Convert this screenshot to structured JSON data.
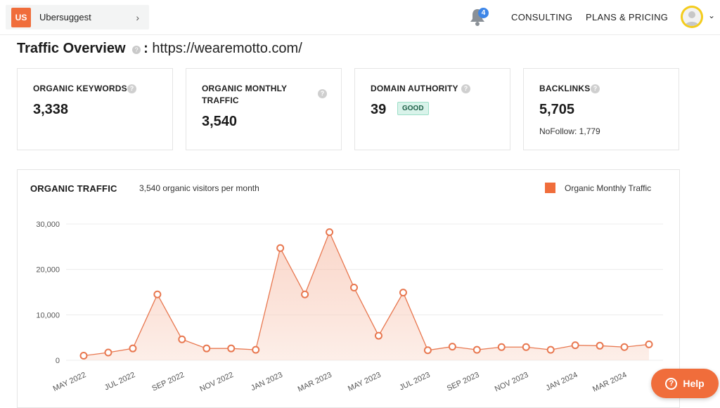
{
  "header": {
    "project_logo": "US",
    "project_name": "Ubersuggest",
    "notification_count": "4",
    "nav": [
      "CONSULTING",
      "PLANS & PRICING"
    ]
  },
  "page": {
    "title": "Traffic Overview",
    "separator": ":",
    "url": "https://wearemotto.com/"
  },
  "metrics": [
    {
      "label_lines": [
        "ORGANIC KEYWORDS"
      ],
      "value": "3,338"
    },
    {
      "label_lines": [
        "ORGANIC MONTHLY",
        "TRAFFIC"
      ],
      "value": "3,540"
    },
    {
      "label_lines": [
        "DOMAIN AUTHORITY"
      ],
      "value": "39",
      "badge": "GOOD"
    },
    {
      "label_lines": [
        "BACKLINKS"
      ],
      "value": "5,705",
      "sub": "NoFollow: 1,779"
    }
  ],
  "chart_panel": {
    "title": "ORGANIC TRAFFIC",
    "subtitle": "3,540 organic visitors per month",
    "legend": "Organic Monthly Traffic"
  },
  "chart_data": {
    "type": "area",
    "title": "ORGANIC TRAFFIC",
    "xlabel": "",
    "ylabel": "",
    "ylim": [
      0,
      30000
    ],
    "yticks": [
      "0",
      "10,000",
      "20,000",
      "30,000"
    ],
    "x": [
      "MAY 2022",
      "JUN 2022",
      "JUL 2022",
      "AUG 2022",
      "SEP 2022",
      "OCT 2022",
      "NOV 2022",
      "DEC 2022",
      "JAN 2023",
      "FEB 2023",
      "MAR 2023",
      "APR 2023",
      "MAY 2023",
      "JUN 2023",
      "JUL 2023",
      "AUG 2023",
      "SEP 2023",
      "OCT 2023",
      "NOV 2023",
      "DEC 2023",
      "JAN 2024",
      "FEB 2024",
      "MAR 2024",
      "APR 2024"
    ],
    "xtick_labels": [
      "MAY 2022",
      "JUL 2022",
      "SEP 2022",
      "NOV 2022",
      "JAN 2023",
      "MAR 2023",
      "MAY 2023",
      "JUL 2023",
      "SEP 2023",
      "NOV 2023",
      "JAN 2024",
      "MAR 2024"
    ],
    "series": [
      {
        "name": "Organic Monthly Traffic",
        "values": [
          1000,
          1700,
          2600,
          14500,
          4600,
          2600,
          2600,
          2300,
          24700,
          14500,
          28200,
          16000,
          5400,
          14900,
          2200,
          3000,
          2300,
          2900,
          2900,
          2300,
          3300,
          3200,
          2900,
          3500
        ]
      }
    ],
    "grid": true,
    "legend": "top-right",
    "color": "#e8774f"
  },
  "help": {
    "label": "Help",
    "icon": "?"
  }
}
